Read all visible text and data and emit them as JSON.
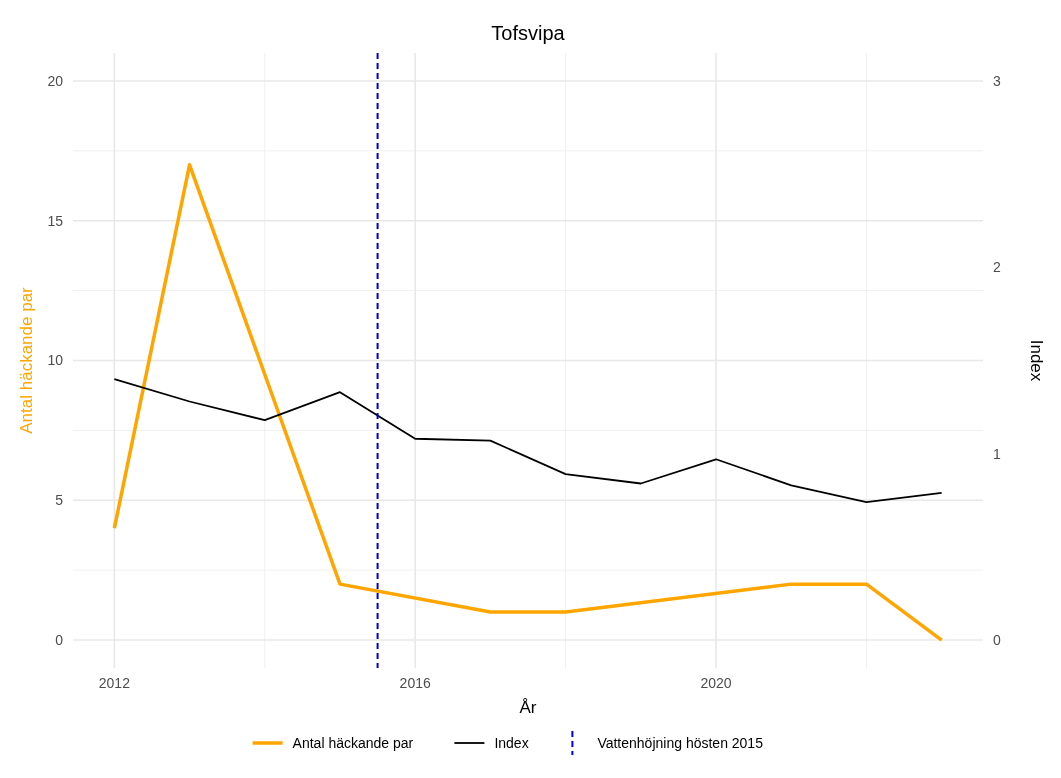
{
  "chart_data": {
    "type": "line",
    "title": "Tofsvipa",
    "xlabel": "År",
    "ylabel": "Antal häckande par",
    "y2label": "Index",
    "xlim": [
      2011.45,
      2023.55
    ],
    "xticks": [
      2012,
      2016,
      2020
    ],
    "ylim": [
      -1,
      21
    ],
    "yticks": [
      0,
      5,
      10,
      15,
      20
    ],
    "y2lim": [
      -0.15,
      3.15
    ],
    "y2ticks": [
      0,
      1,
      2,
      3
    ],
    "grid": true,
    "legend": "bottom",
    "series": [
      {
        "name": "Antal häckande par",
        "color": "#ffa500",
        "x": [
          2012,
          2013,
          2015,
          2017,
          2018,
          2021,
          2022,
          2023
        ],
        "values": [
          4,
          17,
          2,
          1,
          1,
          2,
          2,
          0
        ]
      },
      {
        "name": "Index",
        "color": "#000000",
        "axis": "y2",
        "x": [
          2012,
          2013,
          2014,
          2015,
          2016,
          2017,
          2018,
          2019,
          2020,
          2021,
          2022,
          2023
        ],
        "values": [
          1.4,
          1.28,
          1.18,
          1.33,
          1.08,
          1.07,
          0.89,
          0.84,
          0.97,
          0.83,
          0.74,
          0.79
        ]
      }
    ],
    "ref_lines": [
      {
        "axis": "x",
        "value": 2015.5,
        "label": "Vattenhöjning hösten 2015",
        "color": "#0000cd",
        "line_style": "dashed"
      }
    ]
  }
}
